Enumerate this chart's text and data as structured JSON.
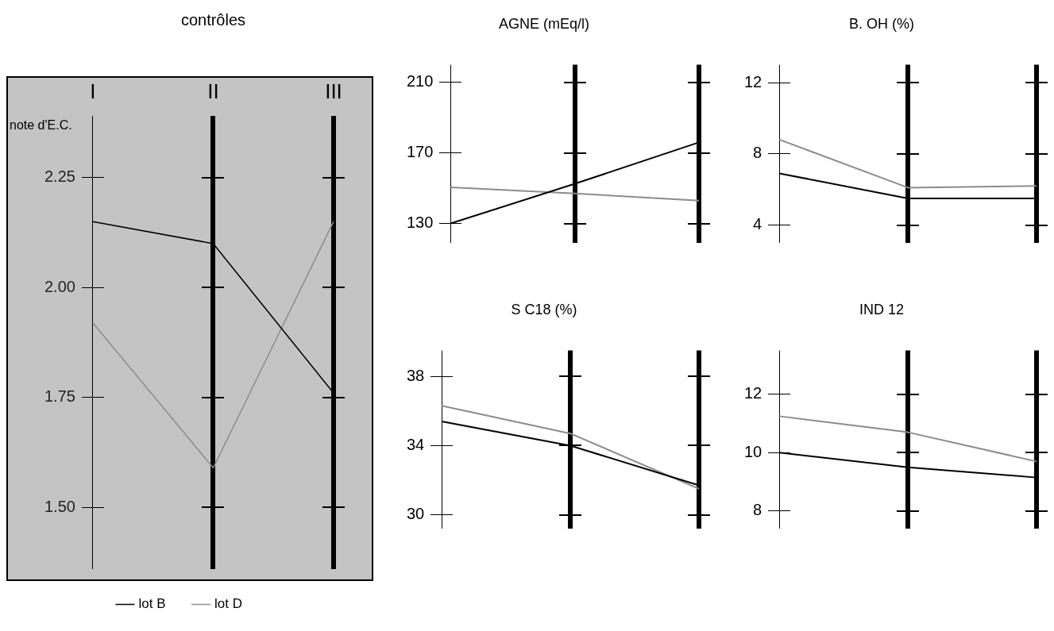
{
  "chart_data": [
    {
      "type": "line",
      "xlabel": "contrôles",
      "ylabel": "note d'E.C.",
      "categories": [
        "I",
        "II",
        "III"
      ],
      "series": [
        {
          "name": "lot B",
          "color": "#000000",
          "values": [
            2.15,
            2.1,
            1.76
          ]
        },
        {
          "name": "lot D",
          "color": "#8c8c8c",
          "values": [
            1.92,
            1.59,
            2.15
          ]
        }
      ],
      "ylim": [
        1.36,
        2.39
      ],
      "yticks": [
        {
          "value": 1.5,
          "label": "1.50"
        },
        1.75,
        {
          "value": 2,
          "label": "2.00"
        },
        2.25
      ],
      "grid": "x",
      "legend": "bottom"
    },
    {
      "type": "line",
      "title": "AGNE (mEq/l)",
      "categories": [
        null,
        null,
        null
      ],
      "series": [
        {
          "color": "#000000",
          "values": [
            130,
            152.5,
            176
          ]
        },
        {
          "color": "#8c8c8c",
          "values": [
            150.5,
            147,
            143
          ]
        }
      ],
      "ylim": [
        119,
        220
      ],
      "yticks": [
        130,
        170,
        210
      ],
      "grid": "x",
      "tick_labels": "y"
    },
    {
      "type": "line",
      "title": "B. OH (%)",
      "categories": [
        null,
        null,
        null
      ],
      "series": [
        {
          "color": "#000000",
          "values": [
            6.9,
            5.5,
            5.5
          ]
        },
        {
          "color": "#8c8c8c",
          "values": [
            8.8,
            6.1,
            6.2
          ]
        }
      ],
      "ylim": [
        3,
        13
      ],
      "yticks": [
        4,
        8,
        12
      ],
      "grid": "x",
      "tick_labels": "y"
    },
    {
      "type": "line",
      "title": "S C18 (%)",
      "categories": [
        null,
        null,
        null
      ],
      "series": [
        {
          "color": "#000000",
          "values": [
            35.4,
            34,
            31.7
          ]
        },
        {
          "color": "#8c8c8c",
          "values": [
            36.3,
            34.7,
            31.5
          ]
        }
      ],
      "ylim": [
        29.2,
        39.5
      ],
      "yticks": [
        30,
        34,
        38
      ],
      "grid": "x",
      "tick_labels": "y"
    },
    {
      "type": "line",
      "title": "IND 12",
      "categories": [
        null,
        null,
        null
      ],
      "series": [
        {
          "color": "#000000",
          "values": [
            10,
            9.5,
            9.15
          ]
        },
        {
          "color": "#8c8c8c",
          "values": [
            11.25,
            10.7,
            9.7
          ]
        }
      ],
      "ylim": [
        7.4,
        13.5
      ],
      "yticks": [
        8,
        10,
        12
      ],
      "grid": "x",
      "tick_labels": "y"
    }
  ]
}
